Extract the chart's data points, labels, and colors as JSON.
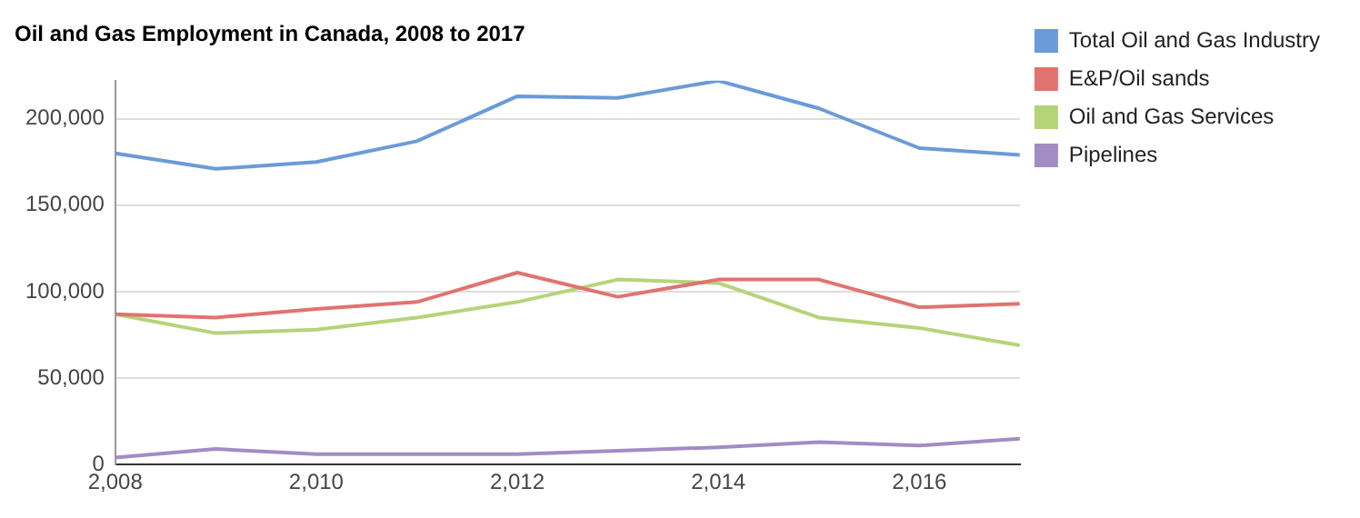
{
  "chart_data": {
    "type": "line",
    "title": "Oil and Gas Employment in Canada, 2008 to 2017",
    "x": [
      2008,
      2009,
      2010,
      2011,
      2012,
      2013,
      2014,
      2015,
      2016,
      2017
    ],
    "series": [
      {
        "name": "Total Oil and Gas Industry",
        "color": "#6a9bd8",
        "values": [
          180000,
          171000,
          175000,
          187000,
          213000,
          212000,
          222000,
          206000,
          183000,
          179000
        ]
      },
      {
        "name": "E&P/Oil sands",
        "color": "#e07370",
        "values": [
          87000,
          85000,
          90000,
          94000,
          111000,
          97000,
          107000,
          107000,
          91000,
          93000
        ]
      },
      {
        "name": "Oil and Gas Services",
        "color": "#b5d47a",
        "values": [
          87000,
          76000,
          78000,
          85000,
          94000,
          107000,
          105000,
          85000,
          79000,
          69000
        ]
      },
      {
        "name": "Pipelines",
        "color": "#a18cc6",
        "values": [
          4000,
          9000,
          6000,
          6000,
          6000,
          8000,
          10000,
          13000,
          11000,
          15000
        ]
      }
    ],
    "xlim": [
      2008,
      2017
    ],
    "xticks": [
      {
        "value": 2008,
        "label": "2,008"
      },
      {
        "value": 2010,
        "label": "2,010"
      },
      {
        "value": 2012,
        "label": "2,012"
      },
      {
        "value": 2014,
        "label": "2,014"
      },
      {
        "value": 2016,
        "label": "2,016"
      }
    ],
    "ylim": [
      0,
      222000
    ],
    "yticks": [
      {
        "value": 0,
        "label": "0"
      },
      {
        "value": 50000,
        "label": "50,000"
      },
      {
        "value": 100000,
        "label": "100,000"
      },
      {
        "value": 150000,
        "label": "150,000"
      },
      {
        "value": 200000,
        "label": "200,000"
      }
    ],
    "grid": "y",
    "legend": "right",
    "marker": "none",
    "line_style": "solid"
  }
}
